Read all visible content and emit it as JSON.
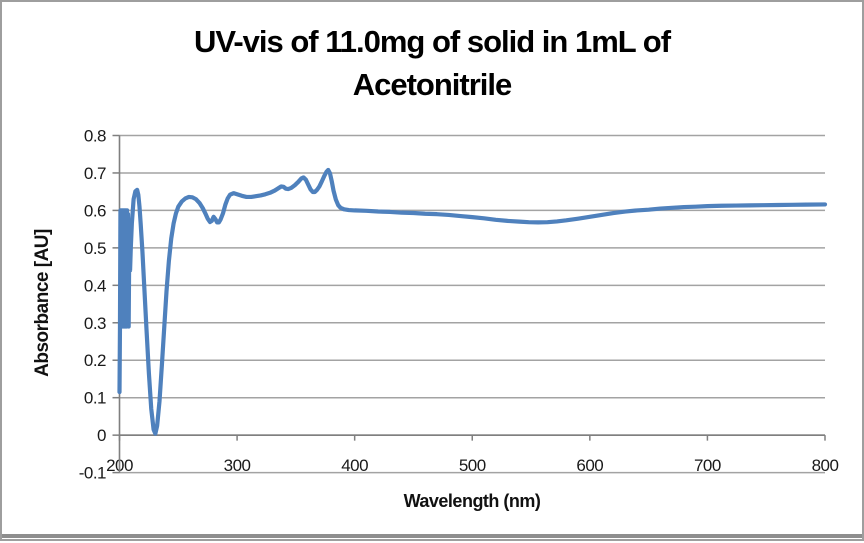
{
  "title": {
    "line1": "UV-vis of 11.0mg of solid in 1mL of",
    "line2": "Acetonitrile"
  },
  "colors": {
    "line": "#4F81BD",
    "gridline": "#a3a3a3",
    "axis": "#7f7f7f",
    "tick": "#7f7f7f",
    "text": "#1a1a1a",
    "border": "#9e9e9e",
    "bottom_bar": "#8e8e8e",
    "background": "#ffffff"
  },
  "chart_data": {
    "type": "line",
    "title": "UV-vis of 11.0mg of solid in 1mL of Acetonitrile",
    "xlabel": "Wavelength (nm)",
    "ylabel": "Absorbance [AU]",
    "xlim": [
      200,
      800
    ],
    "ylim": [
      -0.1,
      0.8
    ],
    "xtick_labels": [
      "200",
      "300",
      "400",
      "500",
      "600",
      "700",
      "800"
    ],
    "ytick_labels": [
      "0.8",
      "0.7",
      "0.6",
      "0.5",
      "0.4",
      "0.3",
      "0.2",
      "0.1",
      "0",
      "-0.1"
    ],
    "grid": "horizontal-major",
    "legend": false,
    "series": [
      {
        "name": "absorbance",
        "color": "#4F81BD",
        "points": [
          [
            200,
            0.115
          ],
          [
            200.4,
            0.29
          ],
          [
            200.8,
            0.6
          ],
          [
            201.2,
            0.29
          ],
          [
            201.6,
            0.6
          ],
          [
            202,
            0.29
          ],
          [
            202.4,
            0.6
          ],
          [
            202.8,
            0.29
          ],
          [
            203.2,
            0.6
          ],
          [
            203.6,
            0.29
          ],
          [
            204,
            0.6
          ],
          [
            204.4,
            0.29
          ],
          [
            204.8,
            0.6
          ],
          [
            205.2,
            0.29
          ],
          [
            205.6,
            0.6
          ],
          [
            206,
            0.29
          ],
          [
            206.4,
            0.6
          ],
          [
            206.8,
            0.3
          ],
          [
            207.2,
            0.59
          ],
          [
            207.8,
            0.29
          ],
          [
            208.4,
            0.555
          ],
          [
            209,
            0.44
          ],
          [
            209.6,
            0.5
          ],
          [
            210.5,
            0.565
          ],
          [
            212,
            0.63
          ],
          [
            213.5,
            0.651
          ],
          [
            215,
            0.655
          ],
          [
            216,
            0.642
          ],
          [
            217,
            0.61
          ],
          [
            218,
            0.565
          ],
          [
            219.5,
            0.49
          ],
          [
            221,
            0.4
          ],
          [
            223,
            0.28
          ],
          [
            225,
            0.165
          ],
          [
            227,
            0.07
          ],
          [
            229,
            0.015
          ],
          [
            230.5,
            0.004
          ],
          [
            232,
            0.025
          ],
          [
            234,
            0.09
          ],
          [
            236,
            0.185
          ],
          [
            238,
            0.285
          ],
          [
            240,
            0.385
          ],
          [
            242,
            0.465
          ],
          [
            244,
            0.525
          ],
          [
            246,
            0.565
          ],
          [
            248,
            0.592
          ],
          [
            250,
            0.61
          ],
          [
            253,
            0.624
          ],
          [
            256,
            0.632
          ],
          [
            259,
            0.636
          ],
          [
            262,
            0.635
          ],
          [
            265,
            0.63
          ],
          [
            268,
            0.62
          ],
          [
            271,
            0.605
          ],
          [
            273,
            0.592
          ],
          [
            275,
            0.578
          ],
          [
            277,
            0.569
          ],
          [
            278.5,
            0.572
          ],
          [
            280,
            0.583
          ],
          [
            281.5,
            0.577
          ],
          [
            283,
            0.568
          ],
          [
            284.5,
            0.568
          ],
          [
            286,
            0.576
          ],
          [
            288,
            0.592
          ],
          [
            290,
            0.615
          ],
          [
            292,
            0.632
          ],
          [
            294,
            0.642
          ],
          [
            297,
            0.646
          ],
          [
            300,
            0.643
          ],
          [
            304,
            0.639
          ],
          [
            308,
            0.636
          ],
          [
            312,
            0.636
          ],
          [
            316,
            0.638
          ],
          [
            320,
            0.64
          ],
          [
            324,
            0.643
          ],
          [
            328,
            0.647
          ],
          [
            332,
            0.653
          ],
          [
            335,
            0.659
          ],
          [
            337.5,
            0.664
          ],
          [
            339.5,
            0.663
          ],
          [
            341.5,
            0.658
          ],
          [
            343.5,
            0.657
          ],
          [
            346,
            0.66
          ],
          [
            349,
            0.667
          ],
          [
            352,
            0.676
          ],
          [
            354.5,
            0.685
          ],
          [
            356.5,
            0.688
          ],
          [
            358.5,
            0.682
          ],
          [
            360.5,
            0.669
          ],
          [
            362.5,
            0.656
          ],
          [
            364.5,
            0.649
          ],
          [
            366,
            0.649
          ],
          [
            368,
            0.655
          ],
          [
            370,
            0.664
          ],
          [
            372,
            0.677
          ],
          [
            374,
            0.691
          ],
          [
            376,
            0.703
          ],
          [
            377.5,
            0.708
          ],
          [
            379,
            0.699
          ],
          [
            380.5,
            0.678
          ],
          [
            382,
            0.653
          ],
          [
            384,
            0.629
          ],
          [
            386,
            0.614
          ],
          [
            388,
            0.607
          ],
          [
            391,
            0.603
          ],
          [
            395,
            0.601
          ],
          [
            400,
            0.6
          ],
          [
            410,
            0.599
          ],
          [
            420,
            0.597
          ],
          [
            430,
            0.596
          ],
          [
            440,
            0.594
          ],
          [
            450,
            0.593
          ],
          [
            460,
            0.591
          ],
          [
            470,
            0.59
          ],
          [
            480,
            0.588
          ],
          [
            490,
            0.585
          ],
          [
            500,
            0.582
          ],
          [
            510,
            0.579
          ],
          [
            520,
            0.575
          ],
          [
            530,
            0.572
          ],
          [
            540,
            0.57
          ],
          [
            548,
            0.5685
          ],
          [
            556,
            0.568
          ],
          [
            564,
            0.5685
          ],
          [
            572,
            0.5705
          ],
          [
            580,
            0.5735
          ],
          [
            590,
            0.578
          ],
          [
            600,
            0.583
          ],
          [
            610,
            0.588
          ],
          [
            620,
            0.593
          ],
          [
            630,
            0.597
          ],
          [
            640,
            0.6
          ],
          [
            650,
            0.602
          ],
          [
            660,
            0.605
          ],
          [
            670,
            0.607
          ],
          [
            680,
            0.609
          ],
          [
            690,
            0.61
          ],
          [
            700,
            0.6115
          ],
          [
            712,
            0.6125
          ],
          [
            724,
            0.613
          ],
          [
            736,
            0.6135
          ],
          [
            748,
            0.614
          ],
          [
            760,
            0.6145
          ],
          [
            772,
            0.615
          ],
          [
            784,
            0.6155
          ],
          [
            800,
            0.616
          ]
        ]
      }
    ]
  }
}
